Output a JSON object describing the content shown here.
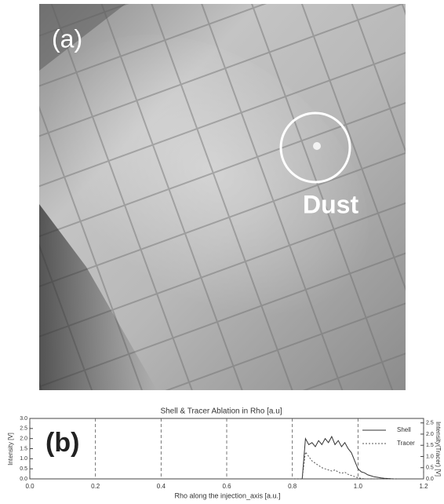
{
  "panel_a": {
    "label": "(a)",
    "annotation": "Dust"
  },
  "panel_b": {
    "label": "(b)"
  },
  "chart_data": {
    "type": "line",
    "title": "Shell & Tracer Ablation in Rho [a.u]",
    "x_label": "Rho along the injection_axis [a.u.]",
    "y_label": "Intensity [V]",
    "y2_label": "Intensity(Tracer) [V]",
    "x": [
      0.8,
      0.81,
      0.82,
      0.83,
      0.84,
      0.85,
      0.86,
      0.87,
      0.88,
      0.89,
      0.9,
      0.91,
      0.92,
      0.93,
      0.94,
      0.95,
      0.96,
      0.97,
      0.98,
      0.99,
      1.0,
      1.01,
      1.02,
      1.03,
      1.04,
      1.05,
      1.06,
      1.07,
      1.08,
      1.09,
      1.1,
      1.11,
      1.12
    ],
    "series": [
      {
        "name": "Shell",
        "color": "#333333",
        "style": "solid",
        "values": [
          0,
          0,
          0,
          0,
          2.0,
          1.7,
          1.8,
          1.6,
          1.9,
          1.7,
          2.0,
          1.8,
          2.1,
          1.7,
          1.9,
          1.6,
          1.8,
          1.5,
          1.3,
          0.9,
          0.5,
          0.35,
          0.3,
          0.2,
          0.15,
          0.1,
          0.08,
          0.05,
          0.03,
          0.02,
          0.01,
          0,
          0
        ]
      },
      {
        "name": "Tracer",
        "color": "#555555",
        "style": "dotted",
        "axis": "y2",
        "values": [
          0,
          0,
          0,
          0,
          1.2,
          1.0,
          0.8,
          0.7,
          0.6,
          0.5,
          0.45,
          0.4,
          0.35,
          0.4,
          0.3,
          0.25,
          0.3,
          0.2,
          0.15,
          0.1,
          0.05,
          0.02,
          0,
          0,
          0,
          0,
          0,
          0,
          0,
          0,
          0,
          0,
          0
        ]
      }
    ],
    "xlim": [
      0,
      1.2
    ],
    "xticks": [
      {
        "value": 0,
        "label": "0.0"
      },
      {
        "value": 0.2,
        "label": "0.2"
      },
      {
        "value": 0.4,
        "label": "0.4"
      },
      {
        "value": 0.6,
        "label": "0.6"
      },
      {
        "value": 0.8,
        "label": "0.8"
      },
      {
        "value": 1,
        "label": "1.0"
      },
      {
        "value": 1.2,
        "label": "1.2"
      }
    ],
    "ylim": [
      0,
      3
    ],
    "yticks": [
      {
        "value": 0,
        "label": "0.0"
      },
      {
        "value": 0.5,
        "label": "0.5"
      },
      {
        "value": 1,
        "label": "1.0"
      },
      {
        "value": 1.5,
        "label": "1.5"
      },
      {
        "value": 2,
        "label": "2.0"
      },
      {
        "value": 2.5,
        "label": "2.5"
      },
      {
        "value": 3,
        "label": "3.0"
      }
    ],
    "y2lim": [
      0,
      2.7
    ],
    "y2ticks": [
      {
        "value": 0,
        "label": "0.0"
      },
      {
        "value": 0.5,
        "label": "0.5"
      },
      {
        "value": 1,
        "label": "1.0"
      },
      {
        "value": 1.5,
        "label": "1.5"
      },
      {
        "value": 2,
        "label": "2.0"
      },
      {
        "value": 2.5,
        "label": "2.5"
      }
    ],
    "grid": "x-dashed",
    "legend": "upper-right"
  }
}
